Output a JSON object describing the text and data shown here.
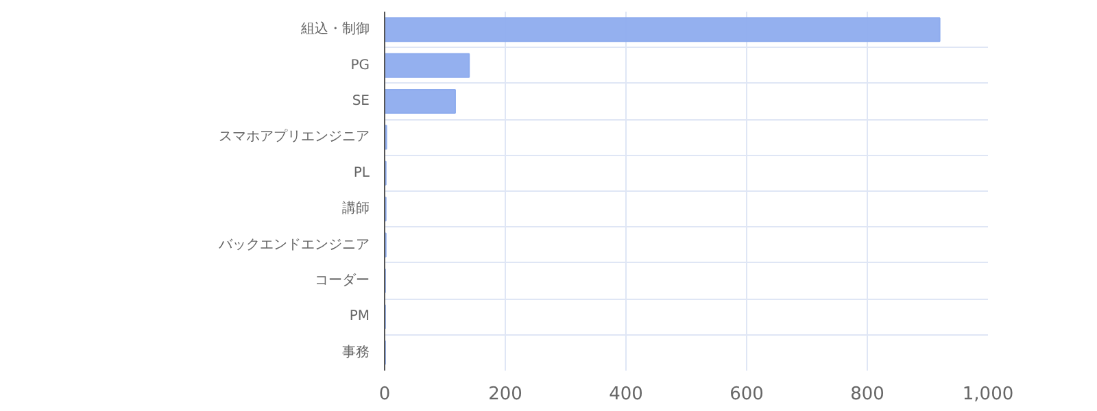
{
  "chart_data": {
    "type": "bar",
    "orientation": "horizontal",
    "categories": [
      "組込・制御",
      "PG",
      "SE",
      "スマホアプリエンジニア",
      "PL",
      "講師",
      "バックエンドエンジニア",
      "コーダー",
      "PM",
      "事務"
    ],
    "values": [
      920,
      140,
      117,
      3,
      2,
      2,
      2,
      1,
      1,
      1
    ],
    "color": "#8eacee",
    "xlim": [
      0,
      1000
    ],
    "xticks": [
      0,
      200,
      400,
      600,
      800,
      {
        "value": 1000,
        "label": "1,000"
      }
    ],
    "grid": true
  }
}
